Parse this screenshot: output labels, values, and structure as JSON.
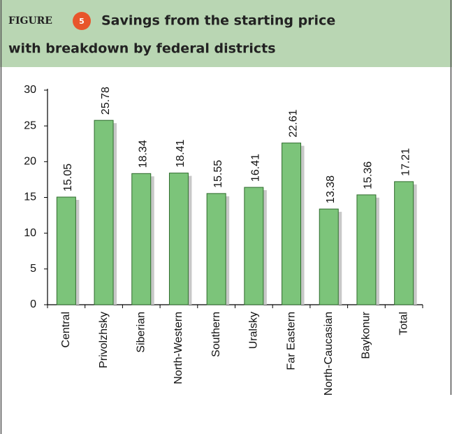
{
  "chart_data": {
    "type": "bar",
    "figure_label": "FIGURE",
    "figure_number": 5,
    "title": [
      "Savings from the starting price",
      "with breakdown by federal districts"
    ],
    "categories": [
      "Central",
      "Privolzhsky",
      "Siberian",
      "North-Western",
      "Southern",
      "Uralsky",
      "Far Eastern",
      "North-Caucasian",
      "Baykonur",
      "Total"
    ],
    "values": [
      15.05,
      25.78,
      18.34,
      18.41,
      15.55,
      16.41,
      22.61,
      13.38,
      15.36,
      17.21
    ],
    "color": "#7cc47a",
    "ylim": [
      0,
      30
    ],
    "yticks": [
      0,
      5,
      10,
      15,
      20,
      25,
      30
    ]
  }
}
